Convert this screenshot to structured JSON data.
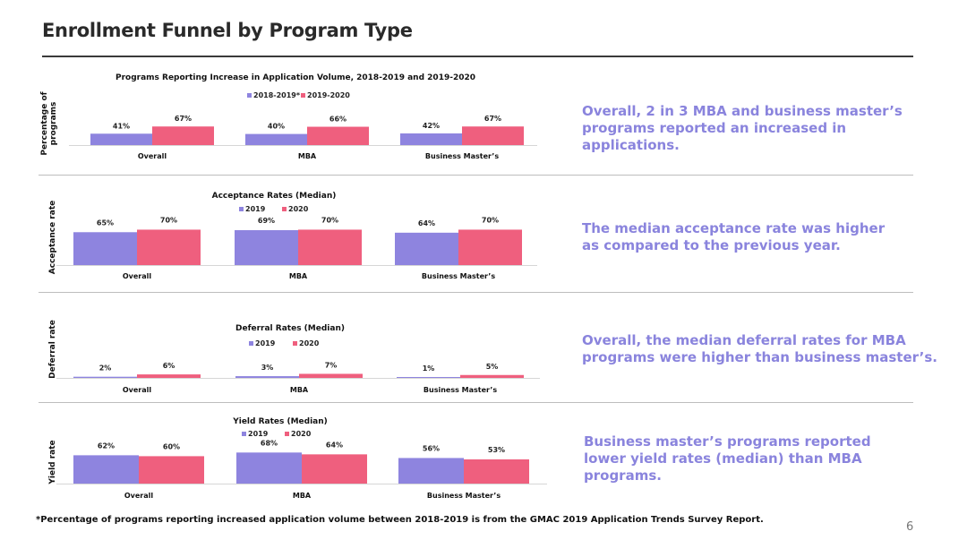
{
  "title": "Enrollment Funnel by Program Type",
  "colors": {
    "series1": "#8e84df",
    "series2": "#ef5f7e",
    "finding_text": "#8a84dd"
  },
  "findings": [
    "Overall, 2 in 3 MBA and business master’s programs reported an increased in applications.",
    "The median acceptance rate was higher as compared to the previous year.",
    "Overall, the median deferral rates for MBA programs were higher than business master’s.",
    "Business master’s programs reported lower yield rates (median) than MBA programs."
  ],
  "footnote": "*Percentage of programs reporting increased application volume between 2018-2019 is from the GMAC 2019 Application Trends Survey Report.",
  "page_number": "6",
  "chart_data": [
    {
      "type": "bar",
      "title": "Programs Reporting Increase in Application Volume, 2018-2019 and 2019-2020",
      "ylabel": "Percentage of programs",
      "categories": [
        "Overall",
        "MBA",
        "Business Master’s"
      ],
      "series": [
        {
          "name": "2018-2019*",
          "values": [
            41,
            40,
            42
          ],
          "labels": [
            "41%",
            "40%",
            "42%"
          ]
        },
        {
          "name": "2019-2020",
          "values": [
            67,
            66,
            67
          ],
          "labels": [
            "67%",
            "66%",
            "67%"
          ]
        }
      ],
      "ylim": [
        0,
        100
      ]
    },
    {
      "type": "bar",
      "title": "Acceptance Rates (Median)",
      "ylabel": "Acceptance rate",
      "categories": [
        "Overall",
        "MBA",
        "Business Master’s"
      ],
      "series": [
        {
          "name": "2019",
          "values": [
            65,
            69,
            64
          ],
          "labels": [
            "65%",
            "69%",
            "64%"
          ]
        },
        {
          "name": "2020",
          "values": [
            70,
            70,
            70
          ],
          "labels": [
            "70%",
            "70%",
            "70%"
          ]
        }
      ],
      "ylim": [
        0,
        100
      ]
    },
    {
      "type": "bar",
      "title": "Deferral Rates (Median)",
      "ylabel": "Deferral rate",
      "categories": [
        "Overall",
        "MBA",
        "Business Master’s"
      ],
      "series": [
        {
          "name": "2019",
          "values": [
            2,
            3,
            1
          ],
          "labels": [
            "2%",
            "3%",
            "1%"
          ]
        },
        {
          "name": "2020",
          "values": [
            6,
            7,
            5
          ],
          "labels": [
            "6%",
            "7%",
            "5%"
          ]
        }
      ],
      "ylim": [
        0,
        100
      ]
    },
    {
      "type": "bar",
      "title": "Yield Rates (Median)",
      "ylabel": "Yield rate",
      "categories": [
        "Overall",
        "MBA",
        "Business Master’s"
      ],
      "series": [
        {
          "name": "2019",
          "values": [
            62,
            68,
            56
          ],
          "labels": [
            "62%",
            "68%",
            "56%"
          ]
        },
        {
          "name": "2020",
          "values": [
            60,
            64,
            53
          ],
          "labels": [
            "60%",
            "64%",
            "53%"
          ]
        }
      ],
      "ylim": [
        0,
        100
      ]
    }
  ]
}
